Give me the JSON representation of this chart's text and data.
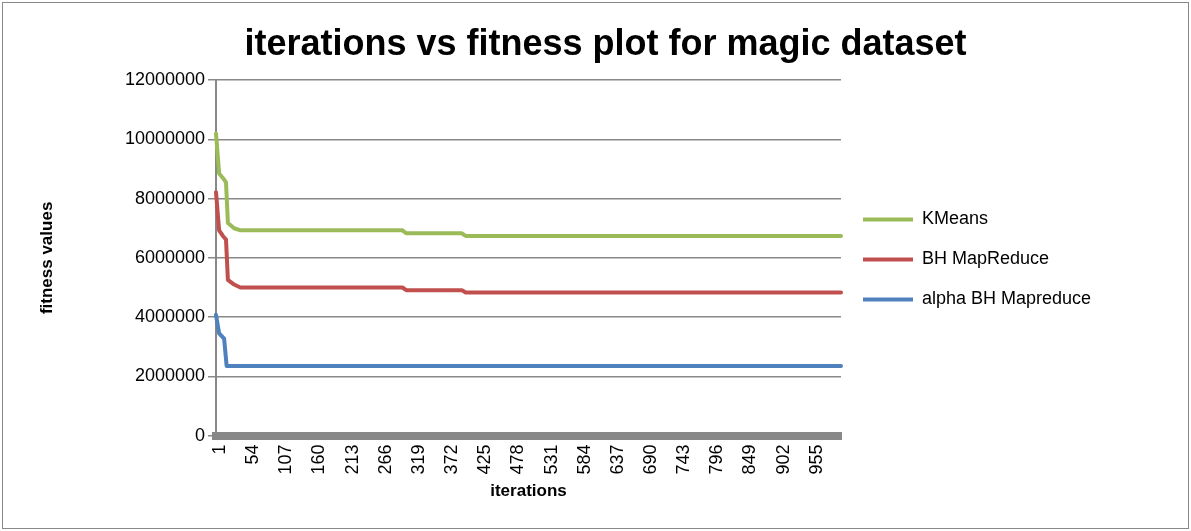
{
  "chart_data": {
    "type": "line",
    "title": "iterations vs fitness plot for magic dataset",
    "xlabel": "iterations",
    "ylabel": "fitness values",
    "xlim": [
      1,
      1000
    ],
    "xticks": [
      1,
      54,
      107,
      160,
      213,
      266,
      319,
      372,
      425,
      478,
      531,
      584,
      637,
      690,
      743,
      796,
      849,
      902,
      955
    ],
    "ylim": [
      0,
      12000000
    ],
    "yticks": [
      0,
      2000000,
      4000000,
      6000000,
      8000000,
      10000000,
      12000000
    ],
    "grid": "y",
    "legend": "right",
    "marker": "none",
    "line_style": "solid",
    "series": [
      {
        "name": "KMeans",
        "color": "#9bbb59",
        "x": [
          1,
          6,
          12,
          17,
          20,
          30,
          40,
          299,
          305,
          394,
          400,
          1000
        ],
        "values": [
          10200000,
          8850000,
          8700000,
          8550000,
          7180000,
          7000000,
          6930000,
          6930000,
          6830000,
          6830000,
          6740000,
          6740000
        ]
      },
      {
        "name": "BH MapReduce",
        "color": "#c0504d",
        "x": [
          1,
          6,
          12,
          17,
          20,
          30,
          40,
          299,
          305,
          394,
          400,
          1000
        ],
        "values": [
          8220000,
          6930000,
          6740000,
          6620000,
          5260000,
          5100000,
          5000000,
          5000000,
          4910000,
          4910000,
          4830000,
          4830000
        ]
      },
      {
        "name": "alpha BH Mapreduce",
        "color": "#4f81bd",
        "x": [
          1,
          6,
          14,
          18,
          1000
        ],
        "values": [
          4080000,
          3450000,
          3270000,
          2350000,
          2350000
        ]
      }
    ]
  }
}
